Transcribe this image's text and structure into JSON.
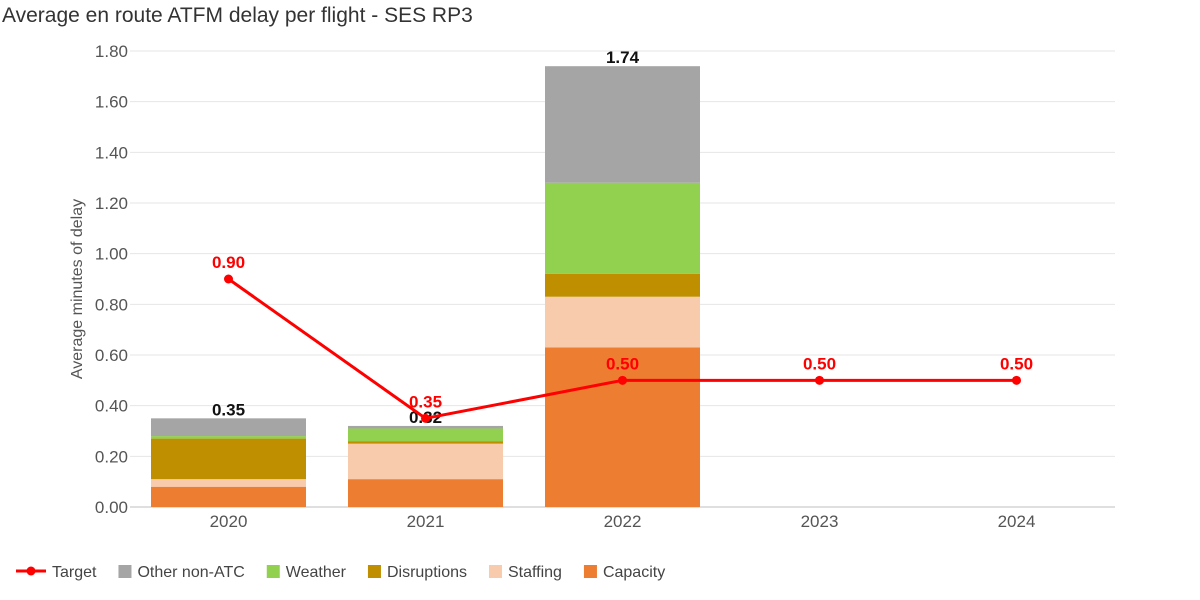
{
  "chart_data": {
    "type": "bar",
    "title": "Average en route ATFM delay per flight - SES RP3",
    "ylabel": "Average minutes of delay",
    "xlabel": "",
    "categories": [
      "2020",
      "2021",
      "2022",
      "2023",
      "2024"
    ],
    "ylim": [
      0,
      1.8
    ],
    "yticks": [
      0,
      0.2,
      0.4,
      0.6,
      0.8,
      1.0,
      1.2,
      1.4,
      1.6,
      1.8
    ],
    "ytick_labels": [
      "0.00",
      "0.20",
      "0.40",
      "0.60",
      "0.80",
      "1.00",
      "1.20",
      "1.40",
      "1.60",
      "1.80"
    ],
    "stacked": true,
    "grid": true,
    "legend_position": "bottom-left",
    "series": [
      {
        "name": "Capacity",
        "color": "#ed7d31",
        "values": [
          0.08,
          0.11,
          0.63,
          null,
          null
        ]
      },
      {
        "name": "Staffing",
        "color": "#f8cbad",
        "values": [
          0.03,
          0.14,
          0.2,
          null,
          null
        ]
      },
      {
        "name": "Disruptions",
        "color": "#bf8f00",
        "values": [
          0.16,
          0.01,
          0.09,
          null,
          null
        ]
      },
      {
        "name": "Weather",
        "color": "#92d050",
        "values": [
          0.01,
          0.05,
          0.36,
          null,
          null
        ]
      },
      {
        "name": "Other non-ATC",
        "color": "#a5a5a5",
        "values": [
          0.07,
          0.01,
          0.46,
          null,
          null
        ]
      }
    ],
    "totals": [
      0.35,
      0.32,
      1.74,
      null,
      null
    ],
    "total_labels": [
      "0.35",
      "0.32",
      "1.74",
      "",
      ""
    ],
    "target": {
      "name": "Target",
      "color": "#ff0000",
      "values": [
        0.9,
        0.35,
        0.5,
        0.5,
        0.5
      ],
      "labels": [
        "0.90",
        "0.35",
        "0.50",
        "0.50",
        "0.50"
      ]
    },
    "legend_order": [
      "Target",
      "Other non-ATC",
      "Weather",
      "Disruptions",
      "Staffing",
      "Capacity"
    ]
  }
}
